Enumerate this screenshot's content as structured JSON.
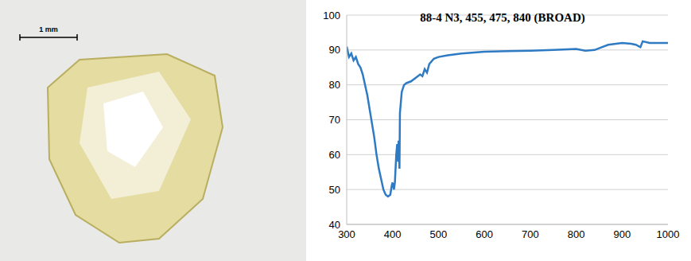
{
  "image": {
    "scale_bar": "1 mm"
  },
  "chart_data": {
    "type": "line",
    "title": "88-4 N3, 455, 475, 840 (BROAD)",
    "xlim": [
      300,
      1000
    ],
    "xticks": [
      300,
      400,
      500,
      600,
      700,
      800,
      900,
      1000
    ],
    "ylim": [
      40,
      100
    ],
    "yticks": [
      40,
      50,
      60,
      70,
      80,
      90,
      100
    ],
    "grid": true,
    "series": [
      {
        "name": "88-4",
        "color": "#2e7bc4",
        "x": [
          300,
          305,
          310,
          315,
          320,
          325,
          330,
          335,
          340,
          345,
          350,
          355,
          360,
          365,
          370,
          375,
          380,
          385,
          390,
          395,
          398,
          400,
          403,
          405,
          408,
          410,
          412,
          413,
          415,
          416,
          420,
          425,
          430,
          440,
          450,
          460,
          465,
          470,
          475,
          480,
          490,
          500,
          520,
          550,
          600,
          650,
          700,
          750,
          800,
          820,
          840,
          850,
          870,
          900,
          920,
          930,
          940,
          945,
          960,
          1000
        ],
        "values": [
          91,
          88,
          89,
          87,
          88,
          86,
          85,
          83,
          80,
          77,
          73,
          69,
          65,
          60,
          56,
          53,
          50,
          48.5,
          48,
          48.5,
          51,
          52,
          50,
          52,
          60,
          63,
          58,
          64,
          56,
          72,
          78,
          80,
          80.5,
          81,
          82,
          83,
          82.5,
          84.5,
          83.5,
          86,
          87.5,
          88,
          88.5,
          89,
          89.5,
          89.7,
          89.8,
          90,
          90.3,
          89.8,
          90,
          90.5,
          91.5,
          92,
          91.8,
          91.5,
          90.8,
          92.5,
          92,
          92
        ]
      }
    ]
  }
}
